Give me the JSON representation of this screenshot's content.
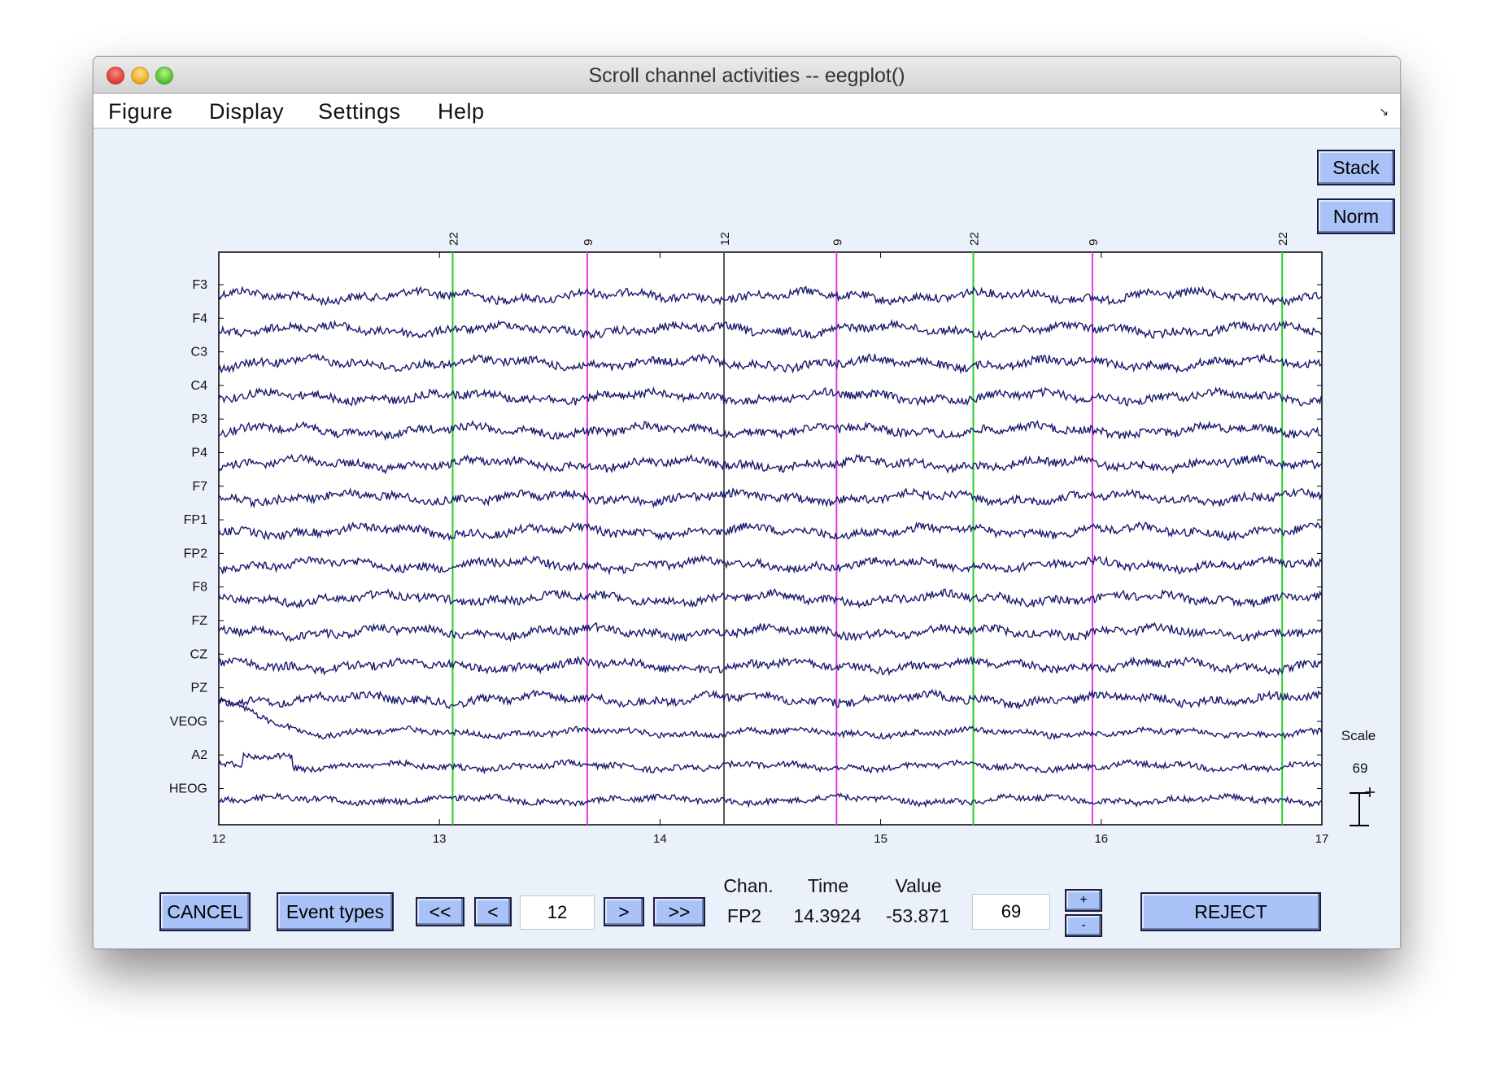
{
  "window": {
    "title": "Scroll channel activities -- eegplot()"
  },
  "menu": {
    "items": [
      "Figure",
      "Display",
      "Settings",
      "Help"
    ]
  },
  "side_buttons": {
    "stack": "Stack",
    "norm": "Norm"
  },
  "scale": {
    "label": "Scale",
    "value": "69"
  },
  "controls": {
    "cancel": "CANCEL",
    "event_types": "Event types",
    "first": "<<",
    "prev": "<",
    "time_field": "12",
    "next": ">",
    "last": ">>",
    "chan_header": "Chan.",
    "time_header": "Time",
    "value_header": "Value",
    "chan_value": "FP2",
    "time_value": "14.3924",
    "value_value": "-53.871",
    "scale_field": "69",
    "plus": "+",
    "minus": "-",
    "reject": "REJECT"
  },
  "colors": {
    "trace": "#1a1a6e",
    "event_22": "#27d027",
    "event_9": "#e43ae4",
    "event_12": "#555555",
    "button": "#a9c2f7",
    "panel": "#eaf1fb"
  },
  "chart_data": {
    "type": "line",
    "xlim": [
      12,
      17
    ],
    "x_ticks": [
      "12",
      "13",
      "14",
      "15",
      "16",
      "17"
    ],
    "channels": [
      "F3",
      "F4",
      "C3",
      "C4",
      "P3",
      "P4",
      "F7",
      "FP1",
      "FP2",
      "F8",
      "FZ",
      "CZ",
      "PZ",
      "VEOG",
      "A2",
      "HEOG"
    ],
    "events": [
      {
        "type": "22",
        "latency": 13.06
      },
      {
        "type": "9",
        "latency": 13.67
      },
      {
        "type": "12",
        "latency": 14.29
      },
      {
        "type": "9",
        "latency": 14.8
      },
      {
        "type": "22",
        "latency": 15.42
      },
      {
        "type": "9",
        "latency": 15.96
      },
      {
        "type": "22",
        "latency": 16.82
      }
    ]
  }
}
